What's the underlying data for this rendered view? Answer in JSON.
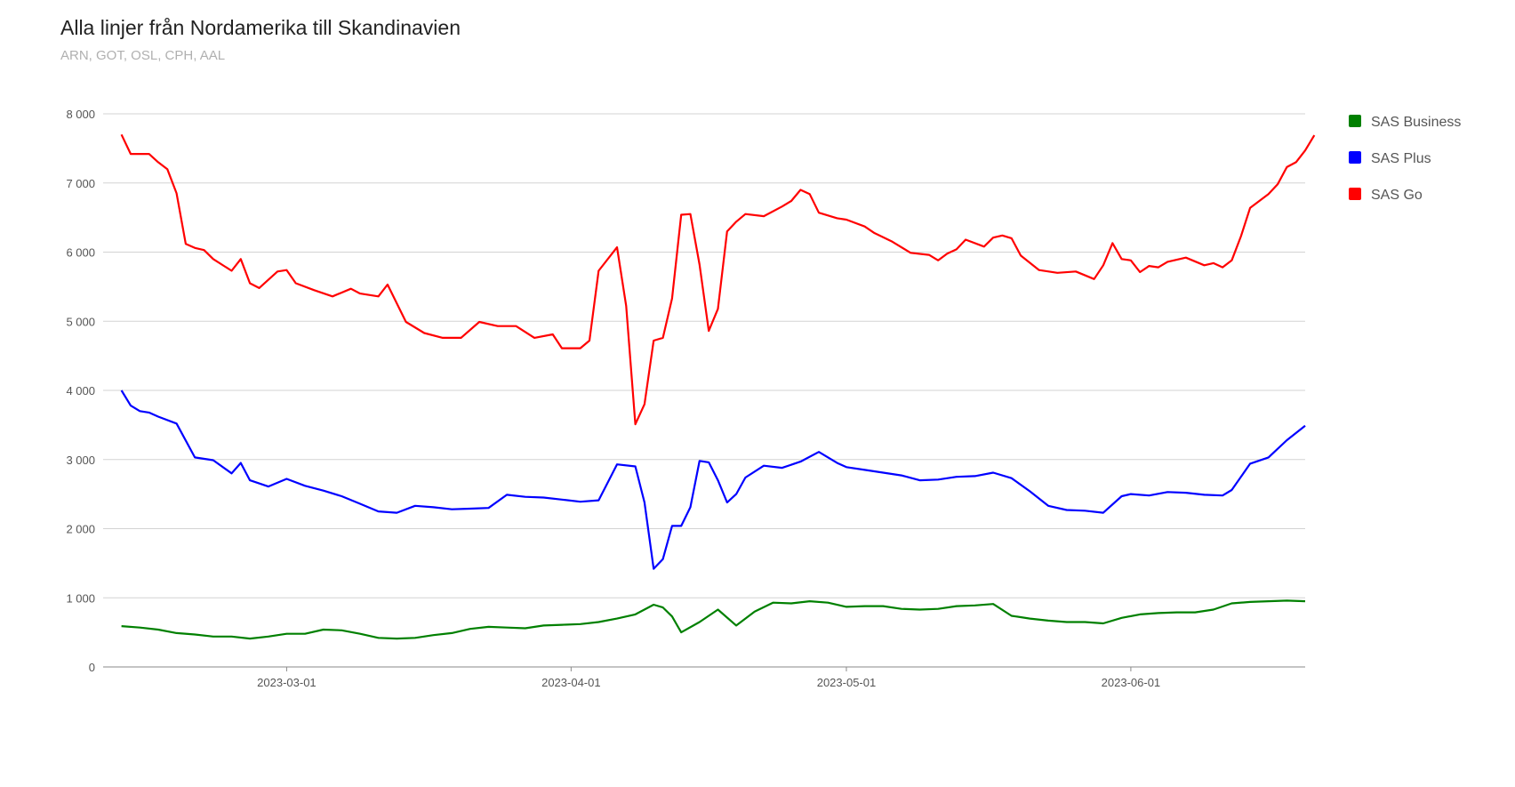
{
  "chart_data": {
    "type": "line",
    "title": "Alla linjer från Nordamerika till Skandinavien",
    "subtitle": "ARN, GOT, OSL, CPH, AAL",
    "xlabel": "",
    "ylabel": "",
    "x_range": [
      "2023-02-09",
      "2023-06-20"
    ],
    "ylim": [
      0,
      8000
    ],
    "y_ticks": [
      0,
      1000,
      2000,
      3000,
      4000,
      5000,
      6000,
      7000,
      8000
    ],
    "y_tick_labels": [
      "0",
      "1 000",
      "2 000",
      "3 000",
      "4 000",
      "5 000",
      "6 000",
      "7 000",
      "8 000"
    ],
    "x_ticks": [
      "2023-03-01",
      "2023-04-01",
      "2023-05-01",
      "2023-06-01"
    ],
    "grid": true,
    "legend_position": "right",
    "series": [
      {
        "name": "SAS Business",
        "color": "#008000",
        "points": [
          [
            "2023-02-11",
            590
          ],
          [
            "2023-02-13",
            570
          ],
          [
            "2023-02-15",
            540
          ],
          [
            "2023-02-17",
            490
          ],
          [
            "2023-02-19",
            470
          ],
          [
            "2023-02-21",
            440
          ],
          [
            "2023-02-23",
            440
          ],
          [
            "2023-02-25",
            410
          ],
          [
            "2023-02-27",
            440
          ],
          [
            "2023-03-01",
            480
          ],
          [
            "2023-03-03",
            480
          ],
          [
            "2023-03-05",
            540
          ],
          [
            "2023-03-07",
            530
          ],
          [
            "2023-03-09",
            480
          ],
          [
            "2023-03-11",
            420
          ],
          [
            "2023-03-13",
            410
          ],
          [
            "2023-03-15",
            420
          ],
          [
            "2023-03-17",
            460
          ],
          [
            "2023-03-19",
            490
          ],
          [
            "2023-03-21",
            550
          ],
          [
            "2023-03-23",
            580
          ],
          [
            "2023-03-25",
            570
          ],
          [
            "2023-03-27",
            560
          ],
          [
            "2023-03-29",
            600
          ],
          [
            "2023-03-31",
            610
          ],
          [
            "2023-04-02",
            620
          ],
          [
            "2023-04-04",
            650
          ],
          [
            "2023-04-06",
            700
          ],
          [
            "2023-04-08",
            760
          ],
          [
            "2023-04-10",
            900
          ],
          [
            "2023-04-11",
            860
          ],
          [
            "2023-04-12",
            730
          ],
          [
            "2023-04-13",
            500
          ],
          [
            "2023-04-15",
            650
          ],
          [
            "2023-04-17",
            830
          ],
          [
            "2023-04-19",
            600
          ],
          [
            "2023-04-21",
            800
          ],
          [
            "2023-04-23",
            930
          ],
          [
            "2023-04-25",
            920
          ],
          [
            "2023-04-27",
            950
          ],
          [
            "2023-04-29",
            930
          ],
          [
            "2023-05-01",
            870
          ],
          [
            "2023-05-03",
            880
          ],
          [
            "2023-05-05",
            880
          ],
          [
            "2023-05-07",
            840
          ],
          [
            "2023-05-09",
            830
          ],
          [
            "2023-05-11",
            840
          ],
          [
            "2023-05-13",
            880
          ],
          [
            "2023-05-15",
            890
          ],
          [
            "2023-05-17",
            910
          ],
          [
            "2023-05-19",
            740
          ],
          [
            "2023-05-21",
            700
          ],
          [
            "2023-05-23",
            670
          ],
          [
            "2023-05-25",
            650
          ],
          [
            "2023-05-27",
            650
          ],
          [
            "2023-05-29",
            630
          ],
          [
            "2023-05-31",
            710
          ],
          [
            "2023-06-02",
            760
          ],
          [
            "2023-06-04",
            780
          ],
          [
            "2023-06-06",
            790
          ],
          [
            "2023-06-08",
            790
          ],
          [
            "2023-06-10",
            830
          ],
          [
            "2023-06-12",
            920
          ],
          [
            "2023-06-14",
            940
          ],
          [
            "2023-06-16",
            950
          ],
          [
            "2023-06-18",
            960
          ],
          [
            "2023-06-20",
            950
          ]
        ]
      },
      {
        "name": "SAS Plus",
        "color": "#0000ff",
        "points": [
          [
            "2023-02-11",
            4000
          ],
          [
            "2023-02-12",
            3780
          ],
          [
            "2023-02-13",
            3700
          ],
          [
            "2023-02-14",
            3680
          ],
          [
            "2023-02-15",
            3620
          ],
          [
            "2023-02-17",
            3520
          ],
          [
            "2023-02-19",
            3030
          ],
          [
            "2023-02-21",
            2990
          ],
          [
            "2023-02-23",
            2800
          ],
          [
            "2023-02-24",
            2950
          ],
          [
            "2023-02-25",
            2700
          ],
          [
            "2023-02-27",
            2610
          ],
          [
            "2023-03-01",
            2720
          ],
          [
            "2023-03-03",
            2620
          ],
          [
            "2023-03-05",
            2550
          ],
          [
            "2023-03-07",
            2470
          ],
          [
            "2023-03-09",
            2360
          ],
          [
            "2023-03-11",
            2250
          ],
          [
            "2023-03-13",
            2230
          ],
          [
            "2023-03-15",
            2330
          ],
          [
            "2023-03-17",
            2310
          ],
          [
            "2023-03-19",
            2280
          ],
          [
            "2023-03-21",
            2290
          ],
          [
            "2023-03-23",
            2300
          ],
          [
            "2023-03-25",
            2490
          ],
          [
            "2023-03-27",
            2460
          ],
          [
            "2023-03-29",
            2450
          ],
          [
            "2023-03-31",
            2420
          ],
          [
            "2023-04-02",
            2390
          ],
          [
            "2023-04-04",
            2410
          ],
          [
            "2023-04-06",
            2930
          ],
          [
            "2023-04-08",
            2900
          ],
          [
            "2023-04-09",
            2380
          ],
          [
            "2023-04-10",
            1420
          ],
          [
            "2023-04-11",
            1560
          ],
          [
            "2023-04-12",
            2040
          ],
          [
            "2023-04-13",
            2040
          ],
          [
            "2023-04-14",
            2310
          ],
          [
            "2023-04-15",
            2980
          ],
          [
            "2023-04-16",
            2960
          ],
          [
            "2023-04-17",
            2700
          ],
          [
            "2023-04-18",
            2380
          ],
          [
            "2023-04-19",
            2500
          ],
          [
            "2023-04-20",
            2740
          ],
          [
            "2023-04-22",
            2910
          ],
          [
            "2023-04-24",
            2880
          ],
          [
            "2023-04-26",
            2970
          ],
          [
            "2023-04-28",
            3110
          ],
          [
            "2023-04-30",
            2950
          ],
          [
            "2023-05-01",
            2890
          ],
          [
            "2023-05-03",
            2850
          ],
          [
            "2023-05-05",
            2810
          ],
          [
            "2023-05-07",
            2770
          ],
          [
            "2023-05-09",
            2700
          ],
          [
            "2023-05-11",
            2710
          ],
          [
            "2023-05-13",
            2750
          ],
          [
            "2023-05-15",
            2760
          ],
          [
            "2023-05-17",
            2810
          ],
          [
            "2023-05-19",
            2730
          ],
          [
            "2023-05-21",
            2540
          ],
          [
            "2023-05-23",
            2330
          ],
          [
            "2023-05-25",
            2270
          ],
          [
            "2023-05-27",
            2260
          ],
          [
            "2023-05-29",
            2230
          ],
          [
            "2023-05-31",
            2470
          ],
          [
            "2023-06-01",
            2500
          ],
          [
            "2023-06-03",
            2480
          ],
          [
            "2023-06-05",
            2530
          ],
          [
            "2023-06-07",
            2520
          ],
          [
            "2023-06-09",
            2490
          ],
          [
            "2023-06-11",
            2480
          ],
          [
            "2023-06-12",
            2560
          ],
          [
            "2023-06-14",
            2940
          ],
          [
            "2023-06-16",
            3030
          ],
          [
            "2023-06-18",
            3280
          ],
          [
            "2023-06-20",
            3490
          ]
        ]
      },
      {
        "name": "SAS Go",
        "color": "#ff0000",
        "points": [
          [
            "2023-02-11",
            7700
          ],
          [
            "2023-02-12",
            7420
          ],
          [
            "2023-02-14",
            7420
          ],
          [
            "2023-02-15",
            7300
          ],
          [
            "2023-02-16",
            7200
          ],
          [
            "2023-02-17",
            6850
          ],
          [
            "2023-02-18",
            6120
          ],
          [
            "2023-02-19",
            6060
          ],
          [
            "2023-02-20",
            6030
          ],
          [
            "2023-02-21",
            5900
          ],
          [
            "2023-02-23",
            5730
          ],
          [
            "2023-02-24",
            5900
          ],
          [
            "2023-02-25",
            5550
          ],
          [
            "2023-02-26",
            5480
          ],
          [
            "2023-02-28",
            5720
          ],
          [
            "2023-03-01",
            5740
          ],
          [
            "2023-03-02",
            5550
          ],
          [
            "2023-03-04",
            5450
          ],
          [
            "2023-03-06",
            5360
          ],
          [
            "2023-03-08",
            5470
          ],
          [
            "2023-03-09",
            5400
          ],
          [
            "2023-03-11",
            5360
          ],
          [
            "2023-03-12",
            5530
          ],
          [
            "2023-03-14",
            4990
          ],
          [
            "2023-03-16",
            4830
          ],
          [
            "2023-03-18",
            4760
          ],
          [
            "2023-03-20",
            4760
          ],
          [
            "2023-03-22",
            4990
          ],
          [
            "2023-03-24",
            4930
          ],
          [
            "2023-03-26",
            4930
          ],
          [
            "2023-03-28",
            4760
          ],
          [
            "2023-03-30",
            4810
          ],
          [
            "2023-03-31",
            4610
          ],
          [
            "2023-04-02",
            4610
          ],
          [
            "2023-04-03",
            4720
          ],
          [
            "2023-04-04",
            5730
          ],
          [
            "2023-04-06",
            6070
          ],
          [
            "2023-04-07",
            5220
          ],
          [
            "2023-04-08",
            3510
          ],
          [
            "2023-04-09",
            3800
          ],
          [
            "2023-04-10",
            4720
          ],
          [
            "2023-04-11",
            4760
          ],
          [
            "2023-04-12",
            5330
          ],
          [
            "2023-04-13",
            6540
          ],
          [
            "2023-04-14",
            6550
          ],
          [
            "2023-04-15",
            5820
          ],
          [
            "2023-04-16",
            4860
          ],
          [
            "2023-04-17",
            5180
          ],
          [
            "2023-04-18",
            6300
          ],
          [
            "2023-04-19",
            6440
          ],
          [
            "2023-04-20",
            6550
          ],
          [
            "2023-04-22",
            6520
          ],
          [
            "2023-04-24",
            6660
          ],
          [
            "2023-04-25",
            6740
          ],
          [
            "2023-04-26",
            6900
          ],
          [
            "2023-04-27",
            6840
          ],
          [
            "2023-04-28",
            6570
          ],
          [
            "2023-04-30",
            6490
          ],
          [
            "2023-05-01",
            6470
          ],
          [
            "2023-05-03",
            6370
          ],
          [
            "2023-05-04",
            6280
          ],
          [
            "2023-05-06",
            6150
          ],
          [
            "2023-05-08",
            5990
          ],
          [
            "2023-05-10",
            5960
          ],
          [
            "2023-05-11",
            5880
          ],
          [
            "2023-05-12",
            5980
          ],
          [
            "2023-05-13",
            6040
          ],
          [
            "2023-05-14",
            6180
          ],
          [
            "2023-05-16",
            6080
          ],
          [
            "2023-05-17",
            6210
          ],
          [
            "2023-05-18",
            6240
          ],
          [
            "2023-05-19",
            6200
          ],
          [
            "2023-05-20",
            5950
          ],
          [
            "2023-05-22",
            5740
          ],
          [
            "2023-05-24",
            5700
          ],
          [
            "2023-05-26",
            5720
          ],
          [
            "2023-05-28",
            5610
          ],
          [
            "2023-05-29",
            5810
          ],
          [
            "2023-05-30",
            6130
          ],
          [
            "2023-05-31",
            5900
          ],
          [
            "2023-06-01",
            5880
          ],
          [
            "2023-06-02",
            5710
          ],
          [
            "2023-06-03",
            5800
          ],
          [
            "2023-06-04",
            5780
          ],
          [
            "2023-06-05",
            5860
          ],
          [
            "2023-06-07",
            5920
          ],
          [
            "2023-06-09",
            5810
          ],
          [
            "2023-06-10",
            5840
          ],
          [
            "2023-06-11",
            5780
          ],
          [
            "2023-06-12",
            5880
          ],
          [
            "2023-06-13",
            6230
          ],
          [
            "2023-06-14",
            6640
          ],
          [
            "2023-06-16",
            6840
          ],
          [
            "2023-06-17",
            6980
          ],
          [
            "2023-06-18",
            7230
          ],
          [
            "2023-06-19",
            7300
          ],
          [
            "2023-06-20",
            7470
          ],
          [
            "2023-06-21",
            7690
          ]
        ]
      }
    ]
  }
}
